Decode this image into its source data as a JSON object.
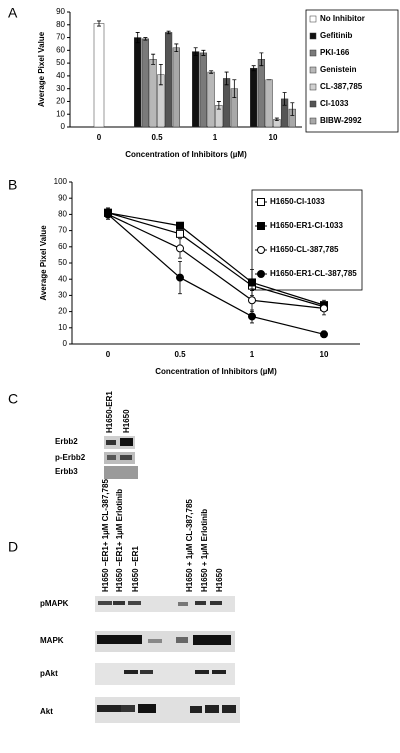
{
  "chart_data": [
    {
      "type": "bar",
      "panel_label": "A",
      "y_label": "Average Pixel Value",
      "x_label": "Concentration  of Inhibitors (µM)",
      "categories": [
        "0",
        "0.5",
        "1",
        "10"
      ],
      "ylim": [
        0,
        90
      ],
      "yticks": [
        0,
        10,
        20,
        30,
        40,
        50,
        60,
        70,
        80,
        90
      ],
      "grid": false,
      "legend": "right",
      "series": [
        {
          "name": "No Inhibitor",
          "color": "#ffffff",
          "values": [
            81,
            null,
            null,
            null
          ],
          "errors": [
            2,
            null,
            null,
            null
          ]
        },
        {
          "name": "Gefitinib",
          "color": "#111111",
          "values": [
            null,
            70,
            59,
            46
          ],
          "errors": [
            null,
            4,
            3,
            2
          ]
        },
        {
          "name": "PKI-166",
          "color": "#7a7a7a",
          "values": [
            null,
            69,
            58,
            53
          ],
          "errors": [
            null,
            1,
            2,
            5
          ]
        },
        {
          "name": "Genistein",
          "color": "#b8b8b8",
          "values": [
            null,
            53,
            43,
            37
          ],
          "errors": [
            null,
            4,
            1,
            0
          ]
        },
        {
          "name": "CL-387,785",
          "color": "#d0d0d0",
          "values": [
            null,
            41,
            17,
            6
          ],
          "errors": [
            null,
            8,
            3,
            1
          ]
        },
        {
          "name": "CI-1033",
          "color": "#555555",
          "values": [
            null,
            74,
            38,
            22
          ],
          "errors": [
            null,
            1,
            5,
            5
          ]
        },
        {
          "name": "BIBW-2992",
          "color": "#a8a8a8",
          "values": [
            null,
            62,
            30,
            14
          ],
          "errors": [
            null,
            3,
            7,
            5
          ]
        }
      ]
    },
    {
      "type": "line",
      "panel_label": "B",
      "y_label": "Average Pixel Value",
      "x_label": "Concentration of Inhibitors (µM)",
      "categories": [
        "0",
        "0.5",
        "1",
        "10"
      ],
      "ylim": [
        0,
        100
      ],
      "yticks": [
        0,
        10,
        20,
        30,
        40,
        50,
        60,
        70,
        80,
        90,
        100
      ],
      "grid": false,
      "legend": "right",
      "series": [
        {
          "name": "H1650-Cl-1033",
          "color": "#000000",
          "marker": "open-square",
          "values": [
            81,
            68,
            36,
            23
          ],
          "errors": [
            3,
            2,
            3,
            2
          ]
        },
        {
          "name": "H1650-ER1-Cl-1033",
          "color": "#000000",
          "marker": "filled-square",
          "values": [
            81,
            73,
            38,
            24
          ],
          "errors": [
            3,
            1,
            8,
            3
          ]
        },
        {
          "name": "H1650-CL-387,785",
          "color": "#000000",
          "marker": "open-circle",
          "values": [
            80,
            59,
            27,
            22
          ],
          "errors": [
            3,
            6,
            7,
            4
          ]
        },
        {
          "name": "H1650-ER1-CL-387,785",
          "color": "#000000",
          "marker": "filled-circle",
          "values": [
            80,
            41,
            17,
            6
          ],
          "errors": [
            3,
            10,
            4,
            2
          ]
        }
      ]
    }
  ],
  "panel_c": {
    "label": "C",
    "columns": [
      "H1650-ER1",
      "H1650"
    ],
    "rows": [
      "Erbb2",
      "p-Erbb2",
      "Erbb3"
    ]
  },
  "panel_d": {
    "label": "D",
    "columns": [
      "H1650 –ER1+ 1µM CL-387,785",
      "H1650 –ER1+ 1µM Erlotinib",
      "H1650 –ER1",
      "H1650 + 1µM CL-387,785",
      "H1650 + 1µM Erlotinib",
      "H1650"
    ],
    "rows": [
      "pMAPK",
      "MAPK",
      "pAkt",
      "Akt"
    ]
  }
}
